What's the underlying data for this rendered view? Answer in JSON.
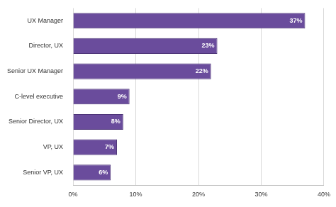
{
  "chart_data": {
    "type": "bar",
    "orientation": "horizontal",
    "categories": [
      "UX Manager",
      "Director, UX",
      "Senior UX Manager",
      "C-level executive",
      "Senior Director, UX",
      "VP, UX",
      "Senior VP, UX"
    ],
    "values": [
      37,
      23,
      22,
      9,
      8,
      7,
      6
    ],
    "value_labels": [
      "37%",
      "23%",
      "22%",
      "9%",
      "8%",
      "7%",
      "6%"
    ],
    "color": "#6a4c9c",
    "xlim": [
      0,
      40
    ],
    "xticks": [
      {
        "value": 0,
        "label": "0%"
      },
      {
        "value": 10,
        "label": "10%"
      },
      {
        "value": 20,
        "label": "20%"
      },
      {
        "value": 30,
        "label": "30%"
      },
      {
        "value": 40,
        "label": "40%"
      }
    ],
    "grid": true,
    "data_labels": true
  }
}
